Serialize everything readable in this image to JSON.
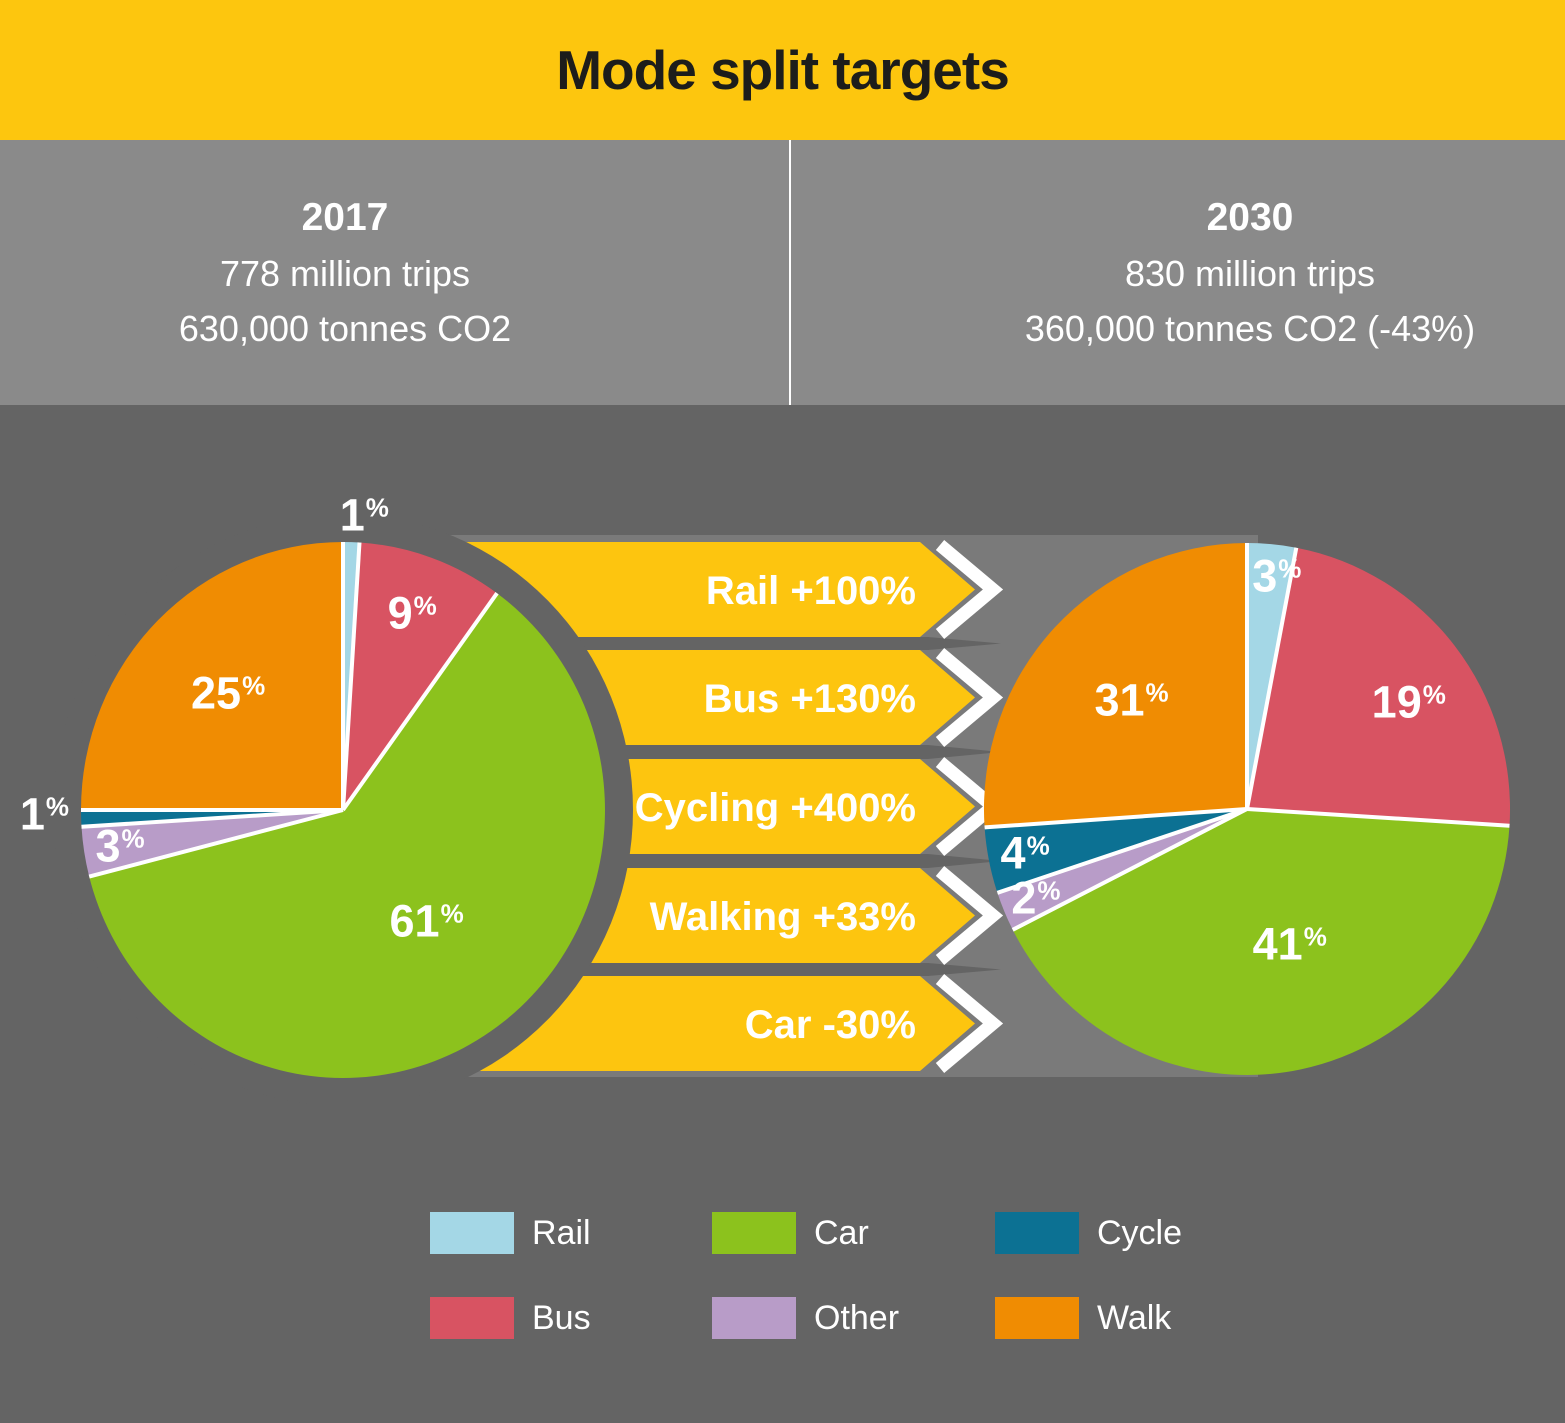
{
  "title": "Mode split targets",
  "columns": {
    "left": {
      "year": "2017",
      "trips": "778 million trips",
      "co2": "630,000 tonnes CO2"
    },
    "right": {
      "year": "2030",
      "trips": "830 million trips",
      "co2": "360,000 tonnes CO2 (-43%)"
    }
  },
  "arrows": [
    {
      "label": "Rail +100%"
    },
    {
      "label": "Bus +130%"
    },
    {
      "label": "Cycling +400%"
    },
    {
      "label": "Walking +33%"
    },
    {
      "label": "Car -30%"
    }
  ],
  "legend": [
    {
      "label": "Rail",
      "color": "#a4d7e6"
    },
    {
      "label": "Car",
      "color": "#8cc21d"
    },
    {
      "label": "Cycle",
      "color": "#0c7193"
    },
    {
      "label": "Bus",
      "color": "#d85362"
    },
    {
      "label": "Other",
      "color": "#b89cc8"
    },
    {
      "label": "Walk",
      "color": "#f08c02"
    }
  ],
  "chart_data": [
    {
      "type": "pie",
      "title": "2017",
      "subtitle": "778 million trips, 630,000 tonnes CO2",
      "categories": [
        "Rail",
        "Bus",
        "Car",
        "Other",
        "Cycle",
        "Walk"
      ],
      "values": [
        1,
        9,
        61,
        3,
        1,
        25
      ],
      "unit": "%",
      "labels": [
        "1%",
        "9%",
        "61%",
        "3%",
        "1%",
        "25%"
      ],
      "colors": [
        "#a4d7e6",
        "#d85362",
        "#8cc21d",
        "#b89cc8",
        "#0c7193",
        "#f08c02"
      ],
      "start_angle": "top, clockwise",
      "legend_position": "bottom"
    },
    {
      "type": "pie",
      "title": "2030",
      "subtitle": "830 million trips, 360,000 tonnes CO2 (-43%)",
      "categories": [
        "Rail",
        "Bus",
        "Car",
        "Other",
        "Cycle",
        "Walk"
      ],
      "values": [
        3,
        19,
        41,
        2,
        4,
        31
      ],
      "unit": "%",
      "labels": [
        "3%",
        "19%",
        "41%",
        "2%",
        "4%",
        "31%"
      ],
      "colors": [
        "#a4d7e6",
        "#d85362",
        "#8cc21d",
        "#b89cc8",
        "#0c7193",
        "#f08c02"
      ],
      "start_angle": "top, clockwise",
      "legend_position": "bottom"
    }
  ],
  "colors": {
    "header_bg": "#fdc60e",
    "stats_bg": "#8a8a8a",
    "stats_text": "#ffffff",
    "canvas_bg": "#646464",
    "arrow_band_bg": "#7a7a7a",
    "arrow_bg": "#fdc50f",
    "arrow_text": "#ffffff",
    "title_text": "#1d1d1b",
    "slice_border": "#ffffff"
  }
}
